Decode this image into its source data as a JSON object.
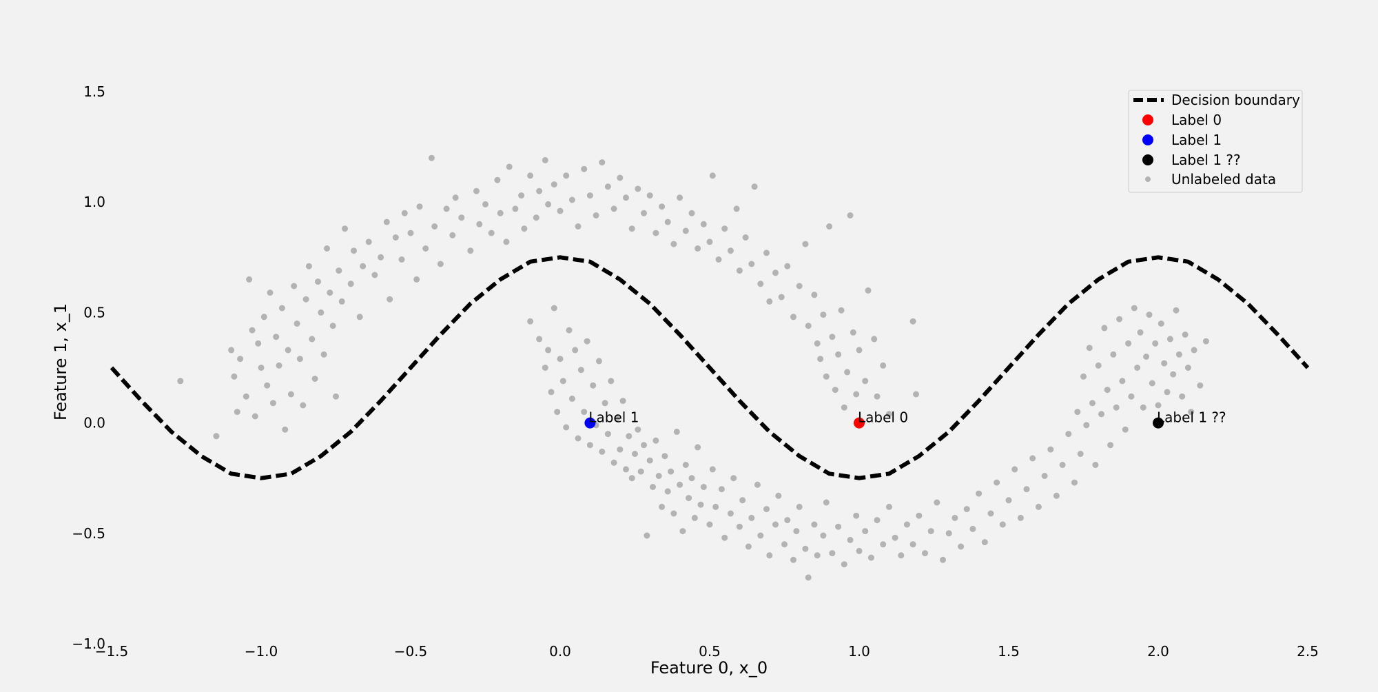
{
  "chart_data": {
    "type": "scatter",
    "title": "",
    "xlabel": "Feature 0, x_0",
    "ylabel": "Feature 1, x_1",
    "xlim": [
      -1.5,
      2.5
    ],
    "ylim": [
      -1.0,
      1.65
    ],
    "x_ticks": [
      -1.5,
      -1.0,
      -0.5,
      0.0,
      0.5,
      1.0,
      1.5,
      2.0,
      2.5
    ],
    "x_tick_labels": [
      "−1.5",
      "−1.0",
      "−0.5",
      "0.0",
      "0.5",
      "1.0",
      "1.5",
      "2.0",
      "2.5"
    ],
    "y_ticks": [
      -1.0,
      -0.5,
      0.0,
      0.5,
      1.0,
      1.5
    ],
    "y_tick_labels": [
      "−1.0",
      "−0.5",
      "0.0",
      "0.5",
      "1.0",
      "1.5"
    ],
    "grid": false,
    "legend_position": "top-right",
    "boundary": {
      "name": "Decision boundary",
      "color": "#000000",
      "x_range": [
        -1.5,
        2.5
      ],
      "x": [
        -1.5,
        -1.4,
        -1.3,
        -1.2,
        -1.1,
        -1.0,
        -0.9,
        -0.8,
        -0.7,
        -0.6,
        -0.5,
        -0.4,
        -0.3,
        -0.2,
        -0.1,
        0.0,
        0.1,
        0.2,
        0.3,
        0.4,
        0.5,
        0.6,
        0.7,
        0.8,
        0.9,
        1.0,
        1.1,
        1.2,
        1.3,
        1.4,
        1.5,
        1.6,
        1.7,
        1.8,
        1.9,
        2.0,
        2.1,
        2.2,
        2.3,
        2.4,
        2.5
      ],
      "y": [
        0.25,
        0.1,
        -0.04,
        -0.15,
        -0.23,
        -0.25,
        -0.23,
        -0.15,
        -0.04,
        0.1,
        0.25,
        0.4,
        0.54,
        0.65,
        0.73,
        0.75,
        0.73,
        0.65,
        0.54,
        0.4,
        0.25,
        0.1,
        -0.04,
        -0.15,
        -0.23,
        -0.25,
        -0.23,
        -0.15,
        -0.04,
        0.1,
        0.25,
        0.4,
        0.54,
        0.65,
        0.73,
        0.75,
        0.73,
        0.65,
        0.54,
        0.4,
        0.25
      ]
    },
    "labeled_points": [
      {
        "name": "Label 0",
        "x": 1.0,
        "y": 0.0,
        "color": "#ff0000",
        "annotation": "Label 0"
      },
      {
        "name": "Label 1",
        "x": 0.1,
        "y": 0.0,
        "color": "#0000ff",
        "annotation": "Label 1"
      },
      {
        "name": "Label 1 ??",
        "x": 2.0,
        "y": 0.0,
        "color": "#000000",
        "annotation": "Label 1 ??"
      }
    ],
    "unlabeled": {
      "name": "Unlabeled data",
      "color": "#808080",
      "points": [
        [
          -1.27,
          0.19
        ],
        [
          -1.15,
          -0.06
        ],
        [
          -1.1,
          0.33
        ],
        [
          -1.09,
          0.21
        ],
        [
          -1.08,
          0.05
        ],
        [
          -1.07,
          0.29
        ],
        [
          -1.05,
          0.12
        ],
        [
          -1.04,
          0.65
        ],
        [
          -1.03,
          0.42
        ],
        [
          -1.02,
          0.03
        ],
        [
          -1.01,
          0.36
        ],
        [
          -1.0,
          0.25
        ],
        [
          -0.99,
          0.48
        ],
        [
          -0.98,
          0.17
        ],
        [
          -0.97,
          0.59
        ],
        [
          -0.96,
          0.09
        ],
        [
          -0.95,
          0.39
        ],
        [
          -0.94,
          0.26
        ],
        [
          -0.93,
          0.52
        ],
        [
          -0.92,
          -0.03
        ],
        [
          -0.91,
          0.33
        ],
        [
          -0.9,
          0.13
        ],
        [
          -0.89,
          0.62
        ],
        [
          -0.88,
          0.45
        ],
        [
          -0.87,
          0.29
        ],
        [
          -0.86,
          0.08
        ],
        [
          -0.85,
          0.56
        ],
        [
          -0.84,
          0.71
        ],
        [
          -0.83,
          0.38
        ],
        [
          -0.82,
          0.2
        ],
        [
          -0.81,
          0.64
        ],
        [
          -0.8,
          0.5
        ],
        [
          -0.79,
          0.31
        ],
        [
          -0.78,
          0.79
        ],
        [
          -0.77,
          0.59
        ],
        [
          -0.76,
          0.44
        ],
        [
          -0.75,
          0.12
        ],
        [
          -0.74,
          0.69
        ],
        [
          -0.73,
          0.55
        ],
        [
          -0.72,
          0.88
        ],
        [
          -0.7,
          0.63
        ],
        [
          -0.69,
          0.78
        ],
        [
          -0.67,
          0.48
        ],
        [
          -0.66,
          0.71
        ],
        [
          -0.64,
          0.82
        ],
        [
          -0.62,
          0.67
        ],
        [
          -0.6,
          0.75
        ],
        [
          -0.58,
          0.91
        ],
        [
          -0.57,
          0.56
        ],
        [
          -0.55,
          0.84
        ],
        [
          -0.53,
          0.74
        ],
        [
          -0.52,
          0.95
        ],
        [
          -0.5,
          0.86
        ],
        [
          -0.48,
          0.65
        ],
        [
          -0.47,
          0.98
        ],
        [
          -0.45,
          0.79
        ],
        [
          -0.43,
          1.2
        ],
        [
          -0.42,
          0.89
        ],
        [
          -0.4,
          0.72
        ],
        [
          -0.38,
          0.97
        ],
        [
          -0.36,
          0.85
        ],
        [
          -0.35,
          1.02
        ],
        [
          -0.33,
          0.93
        ],
        [
          -0.3,
          0.78
        ],
        [
          -0.28,
          1.05
        ],
        [
          -0.27,
          0.9
        ],
        [
          -0.25,
          0.99
        ],
        [
          -0.23,
          0.86
        ],
        [
          -0.21,
          1.1
        ],
        [
          -0.2,
          0.95
        ],
        [
          -0.18,
          0.82
        ],
        [
          -0.17,
          1.16
        ],
        [
          -0.15,
          0.97
        ],
        [
          -0.13,
          1.03
        ],
        [
          -0.12,
          0.88
        ],
        [
          -0.1,
          1.12
        ],
        [
          -0.08,
          0.93
        ],
        [
          -0.07,
          1.05
        ],
        [
          -0.05,
          1.19
        ],
        [
          -0.04,
          0.99
        ],
        [
          -0.02,
          1.08
        ],
        [
          0.0,
          0.96
        ],
        [
          0.02,
          1.12
        ],
        [
          0.04,
          1.01
        ],
        [
          0.06,
          0.89
        ],
        [
          0.08,
          1.15
        ],
        [
          0.1,
          1.03
        ],
        [
          0.12,
          0.94
        ],
        [
          0.14,
          1.18
        ],
        [
          0.16,
          1.07
        ],
        [
          0.18,
          0.97
        ],
        [
          0.2,
          1.11
        ],
        [
          0.22,
          1.02
        ],
        [
          0.24,
          0.88
        ],
        [
          0.26,
          1.06
        ],
        [
          0.28,
          0.95
        ],
        [
          0.3,
          1.03
        ],
        [
          0.32,
          0.86
        ],
        [
          0.34,
          0.98
        ],
        [
          0.36,
          0.91
        ],
        [
          0.38,
          0.81
        ],
        [
          0.4,
          1.02
        ],
        [
          0.42,
          0.87
        ],
        [
          0.44,
          0.95
        ],
        [
          0.46,
          0.79
        ],
        [
          0.48,
          0.9
        ],
        [
          0.5,
          0.82
        ],
        [
          0.51,
          1.12
        ],
        [
          0.53,
          0.74
        ],
        [
          0.55,
          0.88
        ],
        [
          0.57,
          0.78
        ],
        [
          0.59,
          0.97
        ],
        [
          0.6,
          0.69
        ],
        [
          0.62,
          0.84
        ],
        [
          0.64,
          0.72
        ],
        [
          0.65,
          1.07
        ],
        [
          0.67,
          0.63
        ],
        [
          0.69,
          0.77
        ],
        [
          0.7,
          0.55
        ],
        [
          0.72,
          0.68
        ],
        [
          0.74,
          0.57
        ],
        [
          0.76,
          0.71
        ],
        [
          0.78,
          0.48
        ],
        [
          0.8,
          0.62
        ],
        [
          0.82,
          0.81
        ],
        [
          0.83,
          0.44
        ],
        [
          0.85,
          0.58
        ],
        [
          0.86,
          0.36
        ],
        [
          0.87,
          0.29
        ],
        [
          0.88,
          0.49
        ],
        [
          0.89,
          0.21
        ],
        [
          0.9,
          0.89
        ],
        [
          0.91,
          0.39
        ],
        [
          0.92,
          0.15
        ],
        [
          0.93,
          0.31
        ],
        [
          0.94,
          0.51
        ],
        [
          0.95,
          0.07
        ],
        [
          0.96,
          0.23
        ],
        [
          0.97,
          0.94
        ],
        [
          0.98,
          0.41
        ],
        [
          0.99,
          0.13
        ],
        [
          1.0,
          0.33
        ],
        [
          1.02,
          0.19
        ],
        [
          1.03,
          0.6
        ],
        [
          1.05,
          0.38
        ],
        [
          1.06,
          0.12
        ],
        [
          1.08,
          0.26
        ],
        [
          1.1,
          0.04
        ],
        [
          1.18,
          0.46
        ],
        [
          1.19,
          0.13
        ],
        [
          -0.1,
          0.46
        ],
        [
          -0.07,
          0.38
        ],
        [
          -0.05,
          0.25
        ],
        [
          -0.04,
          0.33
        ],
        [
          -0.03,
          0.14
        ],
        [
          -0.02,
          0.52
        ],
        [
          -0.01,
          0.05
        ],
        [
          0.0,
          0.29
        ],
        [
          0.01,
          0.19
        ],
        [
          0.02,
          -0.02
        ],
        [
          0.03,
          0.42
        ],
        [
          0.04,
          0.11
        ],
        [
          0.05,
          0.33
        ],
        [
          0.06,
          -0.07
        ],
        [
          0.07,
          0.24
        ],
        [
          0.08,
          0.05
        ],
        [
          0.09,
          0.37
        ],
        [
          0.1,
          -0.1
        ],
        [
          0.11,
          0.17
        ],
        [
          0.12,
          -0.01
        ],
        [
          0.13,
          0.28
        ],
        [
          0.14,
          -0.13
        ],
        [
          0.15,
          0.09
        ],
        [
          0.16,
          -0.05
        ],
        [
          0.17,
          0.19
        ],
        [
          0.18,
          -0.18
        ],
        [
          0.19,
          0.02
        ],
        [
          0.2,
          -0.12
        ],
        [
          0.21,
          0.1
        ],
        [
          0.22,
          -0.21
        ],
        [
          0.23,
          -0.06
        ],
        [
          0.24,
          -0.25
        ],
        [
          0.25,
          -0.14
        ],
        [
          0.26,
          -0.03
        ],
        [
          0.27,
          -0.22
        ],
        [
          0.28,
          -0.1
        ],
        [
          0.29,
          -0.51
        ],
        [
          0.3,
          -0.17
        ],
        [
          0.31,
          -0.29
        ],
        [
          0.32,
          -0.08
        ],
        [
          0.33,
          -0.24
        ],
        [
          0.34,
          -0.38
        ],
        [
          0.35,
          -0.15
        ],
        [
          0.36,
          -0.31
        ],
        [
          0.37,
          -0.22
        ],
        [
          0.38,
          -0.41
        ],
        [
          0.39,
          -0.04
        ],
        [
          0.4,
          -0.28
        ],
        [
          0.41,
          -0.49
        ],
        [
          0.42,
          -0.19
        ],
        [
          0.43,
          -0.34
        ],
        [
          0.44,
          -0.25
        ],
        [
          0.45,
          -0.43
        ],
        [
          0.46,
          -0.11
        ],
        [
          0.47,
          -0.37
        ],
        [
          0.48,
          -0.29
        ],
        [
          0.5,
          -0.46
        ],
        [
          0.51,
          -0.21
        ],
        [
          0.52,
          -0.38
        ],
        [
          0.54,
          -0.3
        ],
        [
          0.55,
          -0.52
        ],
        [
          0.57,
          -0.41
        ],
        [
          0.58,
          -0.25
        ],
        [
          0.6,
          -0.47
        ],
        [
          0.61,
          -0.35
        ],
        [
          0.63,
          -0.56
        ],
        [
          0.64,
          -0.43
        ],
        [
          0.66,
          -0.28
        ],
        [
          0.67,
          -0.51
        ],
        [
          0.69,
          -0.39
        ],
        [
          0.7,
          -0.6
        ],
        [
          0.72,
          -0.46
        ],
        [
          0.73,
          -0.33
        ],
        [
          0.75,
          -0.55
        ],
        [
          0.76,
          -0.44
        ],
        [
          0.78,
          -0.62
        ],
        [
          0.79,
          -0.49
        ],
        [
          0.8,
          -0.38
        ],
        [
          0.82,
          -0.57
        ],
        [
          0.83,
          -0.7
        ],
        [
          0.85,
          -0.46
        ],
        [
          0.86,
          -0.6
        ],
        [
          0.88,
          -0.51
        ],
        [
          0.89,
          -0.36
        ],
        [
          0.91,
          -0.59
        ],
        [
          0.93,
          -0.47
        ],
        [
          0.95,
          -0.64
        ],
        [
          0.97,
          -0.53
        ],
        [
          0.99,
          -0.42
        ],
        [
          1.0,
          -0.58
        ],
        [
          1.02,
          -0.49
        ],
        [
          1.04,
          -0.61
        ],
        [
          1.06,
          -0.44
        ],
        [
          1.08,
          -0.55
        ],
        [
          1.1,
          -0.38
        ],
        [
          1.12,
          -0.52
        ],
        [
          1.14,
          -0.6
        ],
        [
          1.16,
          -0.46
        ],
        [
          1.18,
          -0.55
        ],
        [
          1.2,
          -0.42
        ],
        [
          1.22,
          -0.59
        ],
        [
          1.24,
          -0.49
        ],
        [
          1.26,
          -0.36
        ],
        [
          1.28,
          -0.62
        ],
        [
          1.3,
          -0.5
        ],
        [
          1.32,
          -0.43
        ],
        [
          1.34,
          -0.56
        ],
        [
          1.36,
          -0.39
        ],
        [
          1.38,
          -0.48
        ],
        [
          1.4,
          -0.32
        ],
        [
          1.42,
          -0.54
        ],
        [
          1.44,
          -0.41
        ],
        [
          1.46,
          -0.27
        ],
        [
          1.48,
          -0.46
        ],
        [
          1.5,
          -0.35
        ],
        [
          1.52,
          -0.21
        ],
        [
          1.54,
          -0.43
        ],
        [
          1.56,
          -0.3
        ],
        [
          1.58,
          -0.16
        ],
        [
          1.6,
          -0.38
        ],
        [
          1.62,
          -0.24
        ],
        [
          1.64,
          -0.12
        ],
        [
          1.66,
          -0.33
        ],
        [
          1.68,
          -0.19
        ],
        [
          1.7,
          -0.05
        ],
        [
          1.72,
          -0.27
        ],
        [
          1.73,
          0.05
        ],
        [
          1.74,
          -0.14
        ],
        [
          1.75,
          0.21
        ],
        [
          1.76,
          -0.01
        ],
        [
          1.77,
          0.34
        ],
        [
          1.78,
          0.09
        ],
        [
          1.79,
          -0.19
        ],
        [
          1.8,
          0.26
        ],
        [
          1.81,
          0.04
        ],
        [
          1.82,
          0.43
        ],
        [
          1.83,
          0.15
        ],
        [
          1.84,
          -0.1
        ],
        [
          1.85,
          0.31
        ],
        [
          1.86,
          0.07
        ],
        [
          1.87,
          0.47
        ],
        [
          1.88,
          0.19
        ],
        [
          1.89,
          -0.03
        ],
        [
          1.9,
          0.36
        ],
        [
          1.91,
          0.12
        ],
        [
          1.92,
          0.52
        ],
        [
          1.93,
          0.25
        ],
        [
          1.94,
          0.41
        ],
        [
          1.95,
          0.07
        ],
        [
          1.96,
          0.3
        ],
        [
          1.97,
          0.49
        ],
        [
          1.98,
          0.18
        ],
        [
          1.99,
          0.36
        ],
        [
          2.0,
          0.08
        ],
        [
          2.01,
          0.45
        ],
        [
          2.02,
          0.27
        ],
        [
          2.03,
          0.14
        ],
        [
          2.04,
          0.38
        ],
        [
          2.05,
          0.22
        ],
        [
          2.06,
          0.51
        ],
        [
          2.07,
          0.31
        ],
        [
          2.08,
          0.12
        ],
        [
          2.09,
          0.4
        ],
        [
          2.1,
          0.25
        ],
        [
          2.11,
          0.05
        ],
        [
          2.12,
          0.33
        ],
        [
          2.14,
          0.17
        ],
        [
          2.16,
          0.37
        ]
      ]
    }
  }
}
